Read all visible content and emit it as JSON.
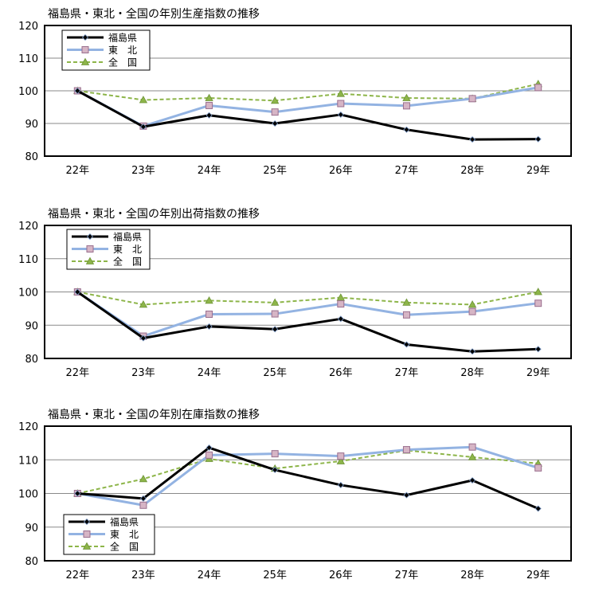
{
  "chart_data": [
    {
      "type": "line",
      "title": "福島県・東北・全国の年別生産指数の推移",
      "categories": [
        "22年",
        "23年",
        "24年",
        "25年",
        "26年",
        "27年",
        "28年",
        "29年"
      ],
      "ylim": [
        80,
        120
      ],
      "yticks": [
        80,
        90,
        100,
        110,
        120
      ],
      "grid": true,
      "legend": "top-left",
      "series": [
        {
          "name": "福島県",
          "values": [
            100,
            89.0,
            92.5,
            90.0,
            92.7,
            88.1,
            85.1,
            85.2
          ]
        },
        {
          "name": "東　北",
          "values": [
            100,
            89.2,
            95.5,
            93.5,
            96.1,
            95.4,
            97.6,
            101.0
          ]
        },
        {
          "name": "全　国",
          "values": [
            100,
            97.2,
            97.8,
            97.0,
            99.1,
            97.8,
            97.6,
            102.1
          ]
        }
      ]
    },
    {
      "type": "line",
      "title": "福島県・東北・全国の年別出荷指数の推移",
      "categories": [
        "22年",
        "23年",
        "24年",
        "25年",
        "26年",
        "27年",
        "28年",
        "29年"
      ],
      "ylim": [
        80,
        120
      ],
      "yticks": [
        80,
        90,
        100,
        110,
        120
      ],
      "grid": true,
      "legend": "top-left",
      "series": [
        {
          "name": "福島県",
          "values": [
            100,
            86.1,
            89.6,
            88.8,
            91.9,
            84.2,
            82.1,
            82.8
          ]
        },
        {
          "name": "東　北",
          "values": [
            100,
            86.7,
            93.3,
            93.4,
            96.4,
            93.1,
            94.1,
            96.6
          ]
        },
        {
          "name": "全　国",
          "values": [
            100,
            96.2,
            97.4,
            96.8,
            98.3,
            96.8,
            96.2,
            100.0
          ]
        }
      ]
    },
    {
      "type": "line",
      "title": "福島県・東北・全国の年別在庫指数の推移",
      "categories": [
        "22年",
        "23年",
        "24年",
        "25年",
        "26年",
        "27年",
        "28年",
        "29年"
      ],
      "ylim": [
        80,
        120
      ],
      "yticks": [
        80,
        90,
        100,
        110,
        120
      ],
      "grid": true,
      "legend": "bottom-left",
      "series": [
        {
          "name": "福島県",
          "values": [
            100,
            98.5,
            113.6,
            107.0,
            102.5,
            99.5,
            103.9,
            95.5
          ]
        },
        {
          "name": "東　北",
          "values": [
            100,
            96.5,
            111.4,
            111.8,
            111.1,
            113.0,
            113.8,
            107.6
          ]
        },
        {
          "name": "全　国",
          "values": [
            100,
            104.3,
            110.3,
            107.4,
            109.6,
            112.8,
            110.8,
            108.9
          ]
        }
      ]
    }
  ],
  "colors": {
    "fukushima": "#000000",
    "tohoku": "#93b3e2",
    "tohoku_marker": "#d6b5c5",
    "tohoku_marker_edge": "#9a6f8e",
    "zenkoku": "#8db549",
    "grid": "#8a8a8a"
  }
}
